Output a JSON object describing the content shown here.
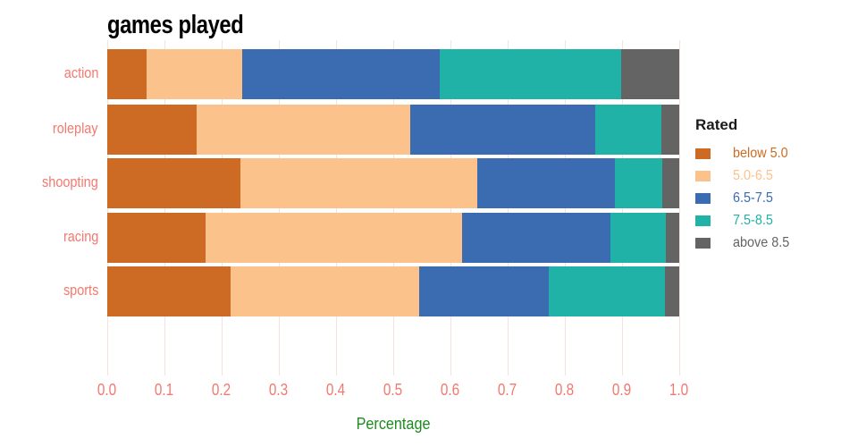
{
  "chart_data": {
    "type": "bar",
    "orientation": "horizontal-stacked",
    "title": "games played",
    "xlabel": "Percentage",
    "legend_title": "Rated",
    "legend_position": "right",
    "grid": true,
    "categories": [
      "action",
      "roleplay",
      "shoopting",
      "racing",
      "sports"
    ],
    "series": [
      {
        "name": "below 5.0",
        "color": "#cd6a23",
        "values": [
          0.068,
          0.156,
          0.233,
          0.172,
          0.215
        ]
      },
      {
        "name": "5.0-6.5",
        "color": "#fcc28b",
        "values": [
          0.168,
          0.374,
          0.414,
          0.448,
          0.33
        ]
      },
      {
        "name": "6.5-7.5",
        "color": "#3b6cb2",
        "values": [
          0.346,
          0.323,
          0.24,
          0.259,
          0.227
        ]
      },
      {
        "name": "7.5-8.5",
        "color": "#20b2a6",
        "values": [
          0.316,
          0.116,
          0.083,
          0.098,
          0.203
        ]
      },
      {
        "name": "above 8.5",
        "color": "#646464",
        "values": [
          0.102,
          0.031,
          0.03,
          0.023,
          0.025
        ]
      }
    ],
    "xlim": [
      0,
      1
    ],
    "xtick_labels": [
      "0.0",
      "0.1",
      "0.2",
      "0.3",
      "0.4",
      "0.5",
      "0.6",
      "0.7",
      "0.8",
      "0.9",
      "1.0"
    ]
  },
  "colors": {
    "axis_text": "#f4796e",
    "gridline": "#fbe1de",
    "title_text": "#000000",
    "xlabel_text": "#1e8b1e",
    "legend_title_text": "#1a1a1a",
    "background": "#ffffff"
  }
}
